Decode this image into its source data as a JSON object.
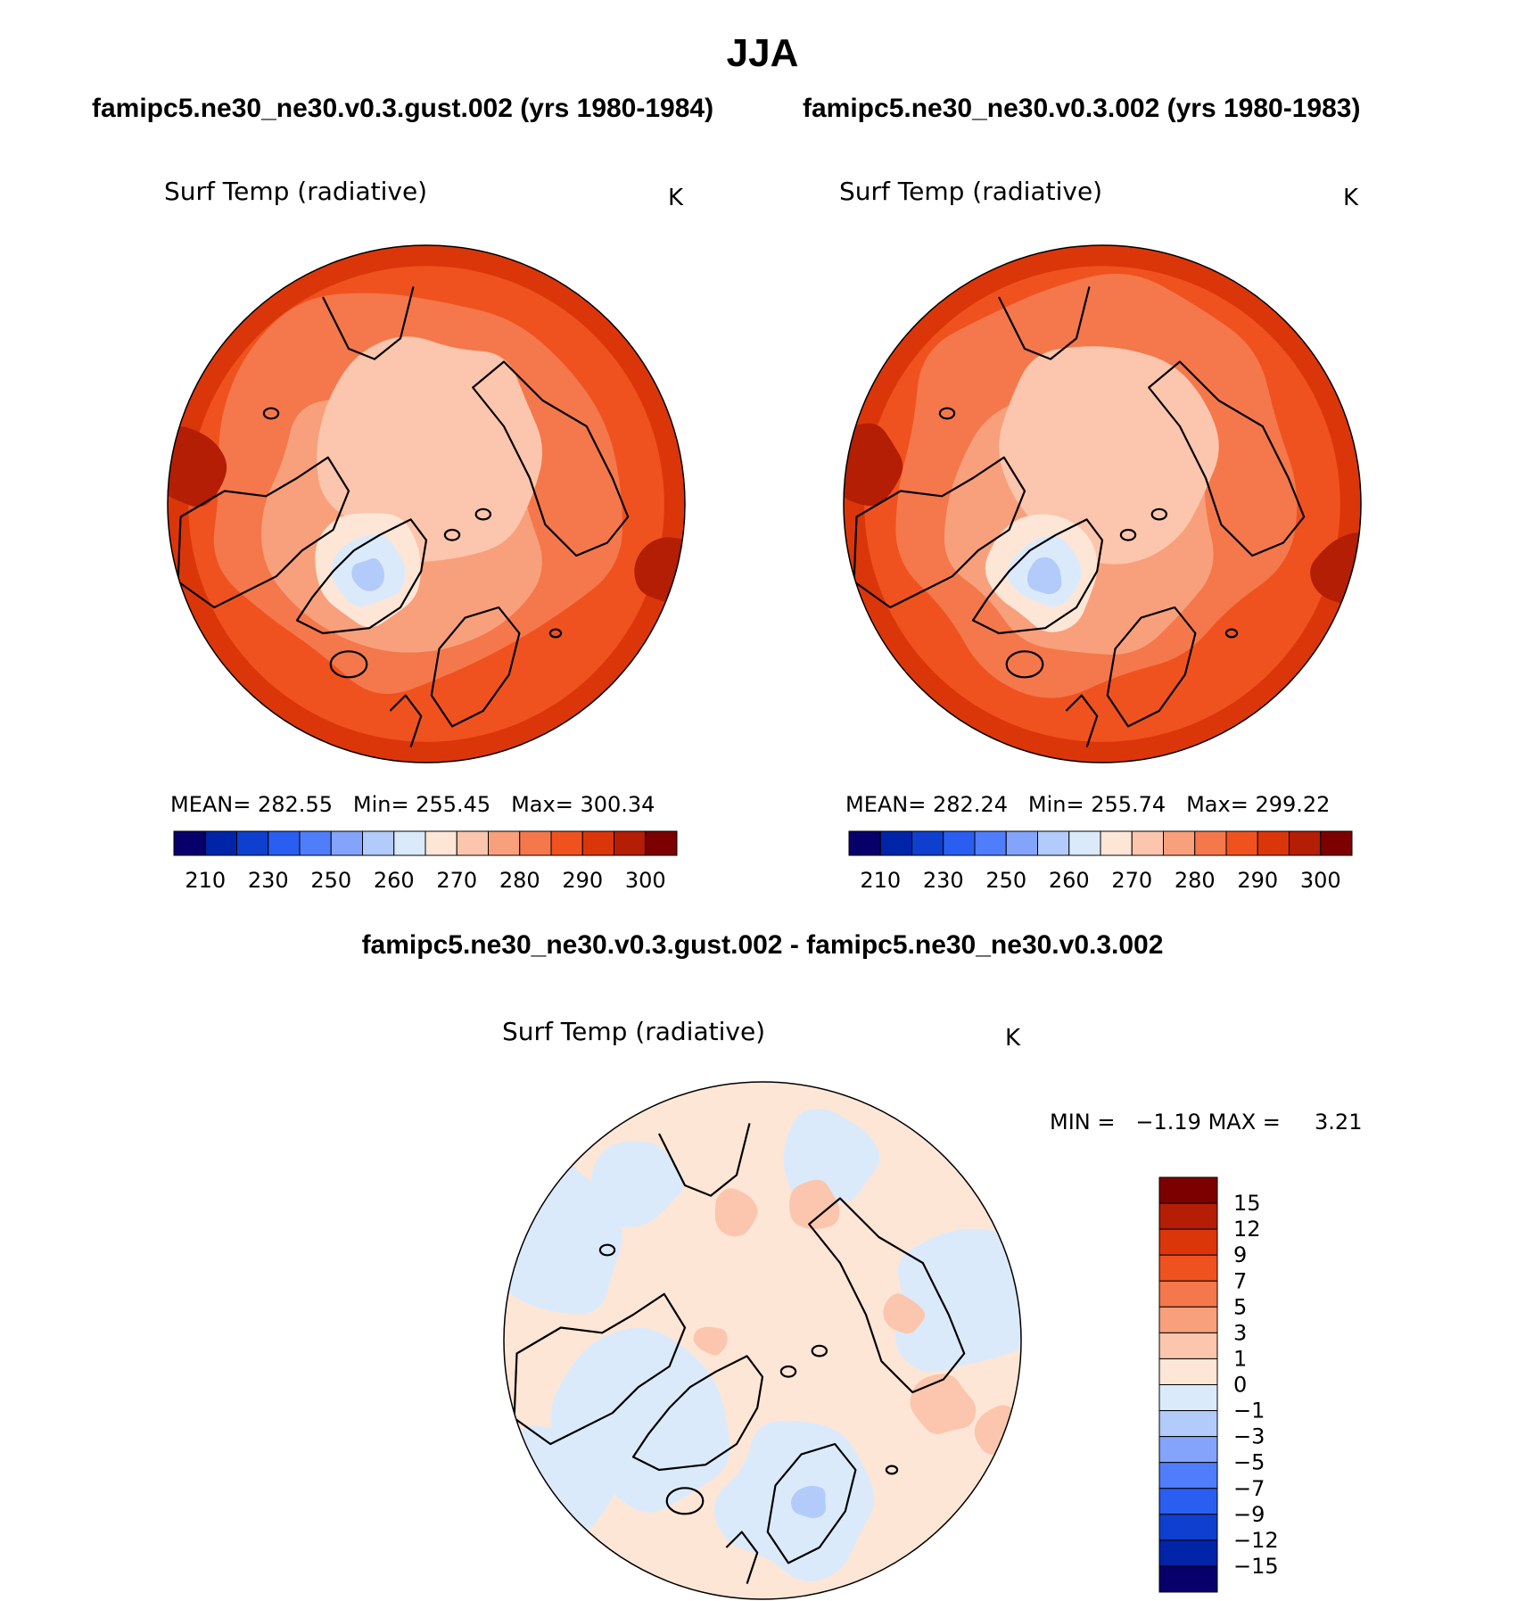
{
  "title": "JJA",
  "colors": {
    "abs_palette": [
      "#08006a",
      "#0024a8",
      "#0f3fce",
      "#2a5ef0",
      "#4f7dfc",
      "#84a3fb",
      "#b3cbfa",
      "#dbeafb",
      "#fde6d6",
      "#fbc6ad",
      "#f8a07b",
      "#f4784b",
      "#f0521f",
      "#db3609",
      "#b31e05",
      "#7d0000"
    ],
    "diff_palette": [
      "#08006a",
      "#0024a8",
      "#0f3fce",
      "#2a5ef0",
      "#4f7dfc",
      "#84a3fb",
      "#b3cbfa",
      "#dbeafb",
      "#fde6d6",
      "#fbc6ad",
      "#f8a07b",
      "#f4784b",
      "#f0521f",
      "#db3609",
      "#b31e05",
      "#7d0000"
    ],
    "coastline": "#000000"
  },
  "chart_data": [
    {
      "type": "heatmap",
      "projection": "north polar stereographic",
      "run_title": "famipc5.ne30_ne30.v0.3.gust.002 (yrs 1980-1984)",
      "field": "Surf Temp (radiative)",
      "units": "K",
      "mean_label": "MEAN=",
      "mean": "282.55",
      "min_label": "Min=",
      "min": "255.45",
      "max_label": "Max=",
      "max": "300.34",
      "colorbar_ticks": [
        "210",
        "230",
        "250",
        "260",
        "270",
        "280",
        "290",
        "300"
      ]
    },
    {
      "type": "heatmap",
      "projection": "north polar stereographic",
      "run_title": "famipc5.ne30_ne30.v0.3.002 (yrs 1980-1983)",
      "field": "Surf Temp (radiative)",
      "units": "K",
      "mean_label": "MEAN=",
      "mean": "282.24",
      "min_label": "Min=",
      "min": "255.74",
      "max_label": "Max=",
      "max": "299.22",
      "colorbar_ticks": [
        "210",
        "230",
        "250",
        "260",
        "270",
        "280",
        "290",
        "300"
      ]
    },
    {
      "type": "heatmap",
      "projection": "north polar stereographic",
      "run_title": "famipc5.ne30_ne30.v0.3.gust.002 - famipc5.ne30_ne30.v0.3.002",
      "field": "Surf Temp (radiative)",
      "units": "K",
      "min_label": "MIN =",
      "min": "−1.19",
      "max_label": "MAX =",
      "max": "3.21",
      "colorbar_ticks": [
        "15",
        "12",
        "9",
        "7",
        "5",
        "3",
        "1",
        "0",
        "−1",
        "−3",
        "−5",
        "−7",
        "−9",
        "−12",
        "−15"
      ]
    }
  ]
}
